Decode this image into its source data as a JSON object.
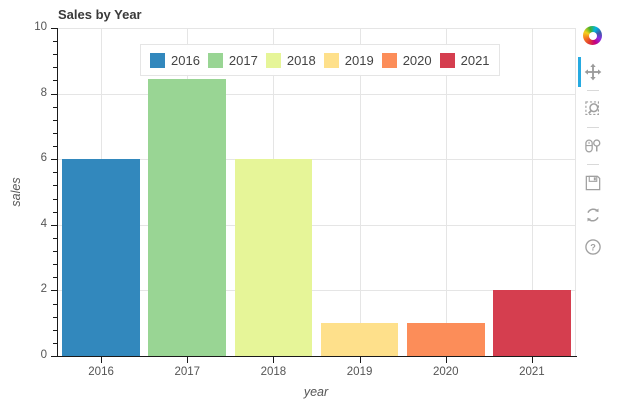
{
  "chart_data": {
    "type": "bar",
    "title": "Sales by Year",
    "xlabel": "year",
    "ylabel": "sales",
    "categories": [
      "2016",
      "2017",
      "2018",
      "2019",
      "2020",
      "2021"
    ],
    "values": [
      6,
      8.45,
      6,
      1,
      1,
      2
    ],
    "bar_colors": [
      "#3288bd",
      "#99d594",
      "#e6f598",
      "#fee08b",
      "#fc8d59",
      "#d53e4f"
    ],
    "ylim": [
      0,
      10
    ],
    "yticks": [
      0,
      2,
      4,
      6,
      8,
      10
    ],
    "y_minor_tick_step": 0.4,
    "bar_width_fraction": 0.9,
    "grid": true,
    "legend": {
      "position": "top",
      "entries": [
        "2016",
        "2017",
        "2018",
        "2019",
        "2020",
        "2021"
      ]
    }
  },
  "toolbar": {
    "logo": "bokeh-logo",
    "active_indicator_color": "#26aae1",
    "tools": [
      {
        "name": "pan",
        "active": true
      },
      {
        "name": "box-zoom",
        "active": false
      },
      {
        "name": "wheel-zoom",
        "active": false
      },
      {
        "name": "save",
        "active": false
      },
      {
        "name": "reset",
        "active": false
      },
      {
        "name": "help",
        "active": false
      }
    ]
  },
  "colors": {
    "grid": "#e5e5e5",
    "axis_line": "#1a1a1a",
    "tick_label": "#555555",
    "title_text": "#3a3a3a",
    "legend_border": "#e5e5e5"
  }
}
